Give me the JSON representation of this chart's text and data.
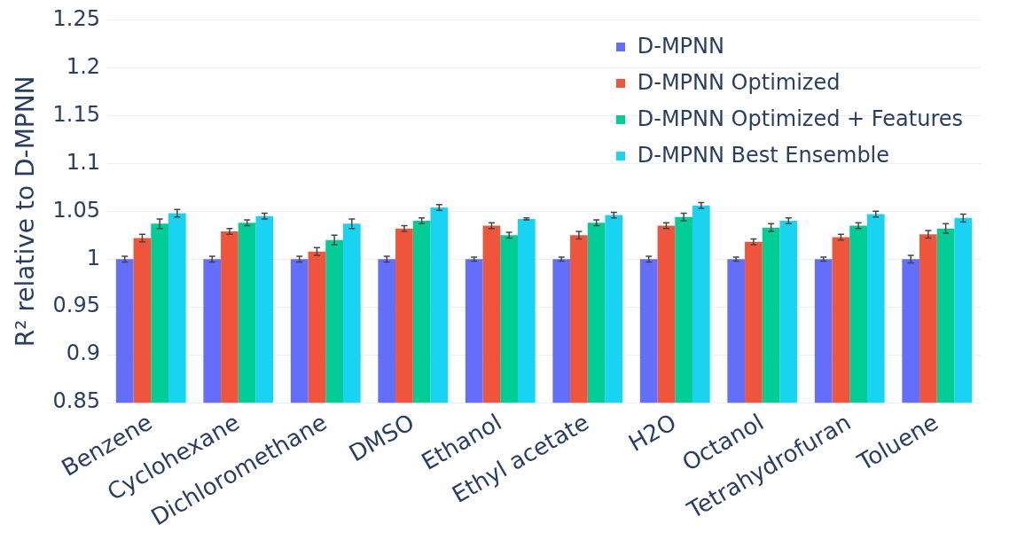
{
  "chart_data": {
    "type": "bar",
    "ylabel": "R² relative to D-MPNN",
    "categories": [
      "Benzene",
      "Cyclohexane",
      "Dichloromethane",
      "DMSO",
      "Ethanol",
      "Ethyl acetate",
      "H2O",
      "Octanol",
      "Tetrahydrofuran",
      "Toluene"
    ],
    "series": [
      {
        "name": "D-MPNN",
        "color": "#636efa",
        "values": [
          1,
          1,
          1,
          1,
          1,
          1,
          1,
          1,
          1,
          1
        ],
        "errors": [
          0.003,
          0.003,
          0.003,
          0.003,
          0.002,
          0.002,
          0.003,
          0.002,
          0.002,
          0.004
        ]
      },
      {
        "name": "D-MPNN Optimized",
        "color": "#ef553b",
        "values": [
          1.022,
          1.029,
          1.008,
          1.032,
          1.035,
          1.025,
          1.035,
          1.018,
          1.023,
          1.026
        ],
        "errors": [
          0.004,
          0.003,
          0.004,
          0.003,
          0.003,
          0.004,
          0.003,
          0.003,
          0.003,
          0.004
        ]
      },
      {
        "name": "D-MPNN Optimized + Features",
        "color": "#00cc96",
        "values": [
          1.037,
          1.038,
          1.02,
          1.04,
          1.025,
          1.038,
          1.044,
          1.033,
          1.035,
          1.032
        ],
        "errors": [
          0.005,
          0.003,
          0.005,
          0.003,
          0.003,
          0.003,
          0.004,
          0.004,
          0.003,
          0.005
        ]
      },
      {
        "name": "D-MPNN Best Ensemble",
        "color": "#19d3f3",
        "values": [
          1.048,
          1.045,
          1.037,
          1.054,
          1.042,
          1.046,
          1.056,
          1.04,
          1.047,
          1.043
        ],
        "errors": [
          0.004,
          0.003,
          0.005,
          0.003,
          0.001,
          0.003,
          0.003,
          0.003,
          0.003,
          0.004
        ]
      }
    ],
    "ylim": [
      0.85,
      1.25
    ],
    "yticks": [
      0.85,
      0.9,
      0.95,
      1,
      1.05,
      1.1,
      1.15,
      1.2,
      1.25
    ],
    "grid": "y",
    "legend": "top right"
  }
}
